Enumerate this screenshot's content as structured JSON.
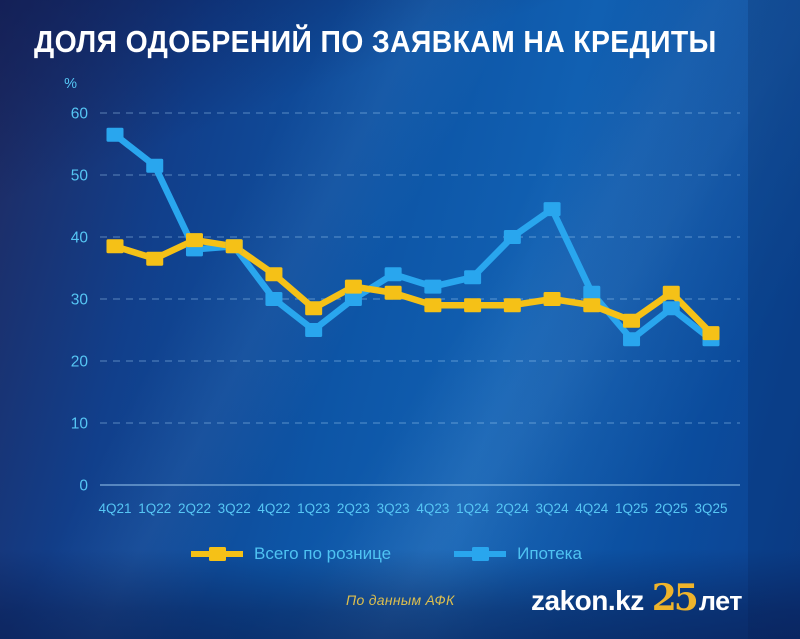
{
  "title": "ДОЛЯ ОДОБРЕНИЙ ПО ЗАЯВКАМ НА КРЕДИТЫ",
  "source_note": "По данным АФК",
  "branding": {
    "site": "zakon.kz",
    "anniversary_number": "25",
    "anniversary_word": "лет"
  },
  "colors": {
    "retail_line": "#F5C117",
    "mortgage_line": "#29A6EE",
    "axis_text": "#56C6F4",
    "legend_text": "#4FC3F2",
    "grid_line": "rgba(170,215,250,0.38)",
    "axis_line": "rgba(170,215,250,0.6)",
    "title_text": "#FFFFFF",
    "source_text": "#DDBF4E",
    "gold": "#EFB42B"
  },
  "legend": {
    "items": [
      {
        "label": "Всего по рознице",
        "color": "#F5C117"
      },
      {
        "label": "Ипотека",
        "color": "#29A6EE"
      }
    ]
  },
  "chart_data": {
    "type": "line",
    "title": "ДОЛЯ ОДОБРЕНИЙ ПО ЗАЯВКАМ НА КРЕДИТЫ",
    "ylabel": "%",
    "xlabel": "",
    "ylim": [
      0,
      60
    ],
    "ytick_step": 10,
    "yticks": [
      0,
      10,
      20,
      30,
      40,
      50,
      60
    ],
    "grid": "horizontal-dashed",
    "legend_position": "bottom",
    "marker": "square",
    "categories": [
      "4Q21",
      "1Q22",
      "2Q22",
      "3Q22",
      "4Q22",
      "1Q23",
      "2Q23",
      "3Q23",
      "4Q23",
      "1Q24",
      "2Q24",
      "3Q24",
      "4Q24",
      "1Q25",
      "2Q25",
      "3Q25"
    ],
    "series": [
      {
        "name": "Всего по рознице",
        "color": "#F5C117",
        "values": [
          38.5,
          36.5,
          39.5,
          38.5,
          34,
          28.5,
          32,
          31,
          29,
          29,
          29,
          30,
          29,
          26.5,
          31,
          24.5
        ]
      },
      {
        "name": "Ипотека",
        "color": "#29A6EE",
        "values": [
          56.5,
          51.5,
          38,
          38.5,
          30,
          25,
          30,
          34,
          32,
          33.5,
          40,
          44.5,
          31,
          23.5,
          28.5,
          23.5
        ]
      }
    ]
  }
}
